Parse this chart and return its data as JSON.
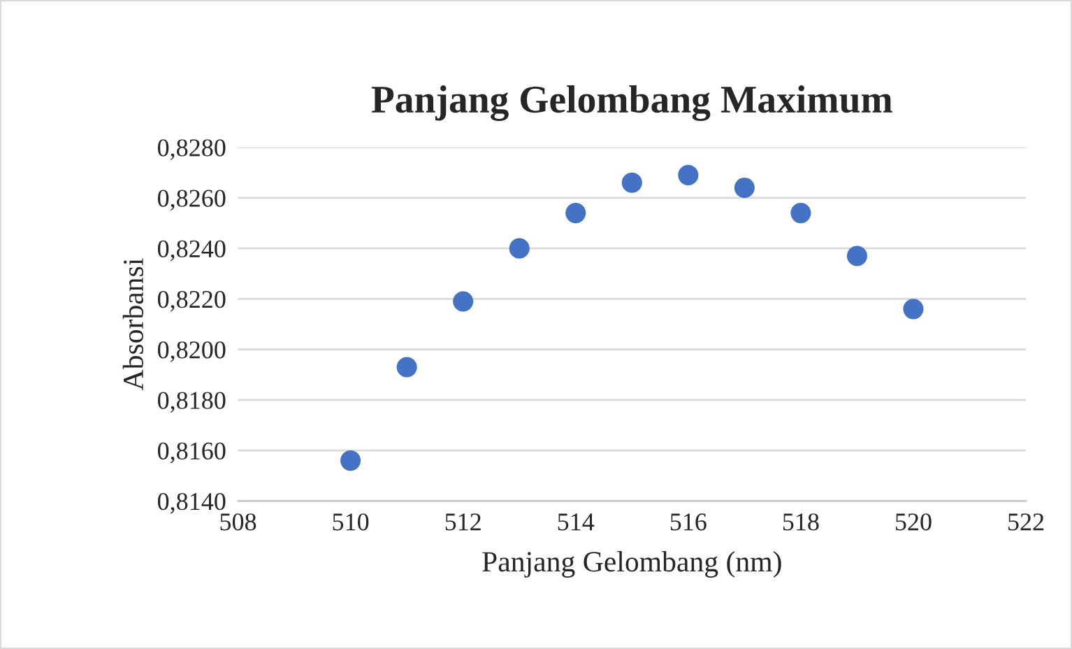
{
  "chart_data": {
    "type": "scatter",
    "title": "Panjang Gelombang Maximum",
    "xlabel": "Panjang Gelombang (nm)",
    "ylabel": "Absorbansi",
    "x": [
      510,
      511,
      512,
      513,
      514,
      515,
      516,
      517,
      518,
      519,
      520
    ],
    "series": [
      {
        "color": "#4472c4",
        "values": [
          0.8156,
          0.8193,
          0.8219,
          0.824,
          0.8254,
          0.8266,
          0.8269,
          0.8264,
          0.8254,
          0.8237,
          0.8216
        ]
      }
    ],
    "xlim": [
      508,
      522
    ],
    "xticks": [
      508,
      510,
      512,
      514,
      516,
      518,
      520,
      522
    ],
    "ylim": [
      0.814,
      0.828
    ],
    "yticks": [
      {
        "value": 0.814,
        "label": "0,8140"
      },
      {
        "value": 0.816,
        "label": "0,8160"
      },
      {
        "value": 0.818,
        "label": "0,8180"
      },
      {
        "value": 0.82,
        "label": "0,8200"
      },
      {
        "value": 0.822,
        "label": "0,8220"
      },
      {
        "value": 0.824,
        "label": "0,8240"
      },
      {
        "value": 0.826,
        "label": "0,8260"
      },
      {
        "value": 0.828,
        "label": "0,8280"
      }
    ],
    "grid": "y",
    "marker": "circle",
    "legend": false
  }
}
